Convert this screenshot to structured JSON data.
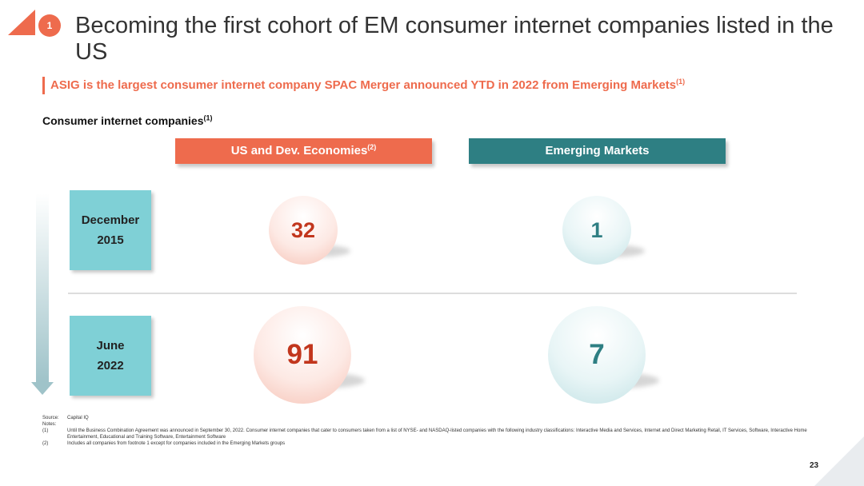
{
  "header": {
    "badge": "1",
    "title": "Becoming the first cohort of EM consumer internet companies listed in the US"
  },
  "subtitle": {
    "text": "ASIG is the largest consumer internet company SPAC Merger announced YTD in 2022 from Emerging Markets",
    "sup": "(1)"
  },
  "section": {
    "label": "Consumer internet companies",
    "sup": "(1)"
  },
  "columns": {
    "us": {
      "label": "US and Dev. Economies",
      "sup": "(2)"
    },
    "em": {
      "label": "Emerging Markets"
    }
  },
  "rows": [
    {
      "date_line1": "December",
      "date_line2": "2015",
      "us_value": "32",
      "em_value": "1"
    },
    {
      "date_line1": "June",
      "date_line2": "2022",
      "us_value": "91",
      "em_value": "7"
    }
  ],
  "notes": {
    "source_key": "Source:",
    "source_val": "Capital IQ",
    "notes_key": "Notes:",
    "n1_key": "(1)",
    "n1_val": "Until the Business Combination Agreement was announced in September 30, 2022. Consumer internet companies that cater to consumers taken from a list of NYSE- and NASDAQ-listed companies with the following industry classifications: Interactive Media and Services, Internet and Direct Marketing Retail, IT Services, Software, Interactive Home Entertainment, Educational and Training Software, Entertainment Software",
    "n2_key": "(2)",
    "n2_val": "Includes all companies from footnote 1 except for companies included in the Emerging Markets groups"
  },
  "page_number": "23",
  "colors": {
    "accent": "#ee6b4d",
    "teal": "#2e7f83",
    "date_box": "#7fd0d6"
  }
}
